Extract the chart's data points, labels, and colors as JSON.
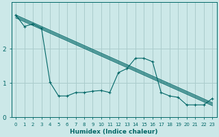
{
  "background_color": "#cce8e8",
  "grid_color": "#aacccc",
  "line_color": "#006666",
  "xlabel": "Humidex (Indice chaleur)",
  "xlim": [
    -0.5,
    23.5
  ],
  "ylim": [
    0,
    3.35
  ],
  "yticks": [
    0,
    1,
    2
  ],
  "xticks": [
    0,
    1,
    2,
    3,
    4,
    5,
    6,
    7,
    8,
    9,
    10,
    11,
    12,
    13,
    14,
    15,
    16,
    17,
    18,
    19,
    20,
    21,
    22,
    23
  ],
  "trend1": {
    "x": [
      0,
      23
    ],
    "y": [
      2.98,
      0.42
    ]
  },
  "trend2": {
    "x": [
      0,
      23
    ],
    "y": [
      2.94,
      0.38
    ]
  },
  "trend3": {
    "x": [
      0,
      23
    ],
    "y": [
      2.9,
      0.34
    ]
  },
  "jagged": {
    "x": [
      0,
      1,
      2,
      3,
      4,
      5,
      6,
      7,
      8,
      9,
      10,
      11,
      12,
      13,
      14,
      15,
      16,
      17,
      18,
      19,
      20,
      21,
      22,
      23
    ],
    "y": [
      2.98,
      2.65,
      2.72,
      2.6,
      1.02,
      0.62,
      0.62,
      0.72,
      0.72,
      0.76,
      0.78,
      0.72,
      1.3,
      1.42,
      1.72,
      1.72,
      1.62,
      0.72,
      0.62,
      0.58,
      0.36,
      0.36,
      0.36,
      0.55
    ]
  }
}
